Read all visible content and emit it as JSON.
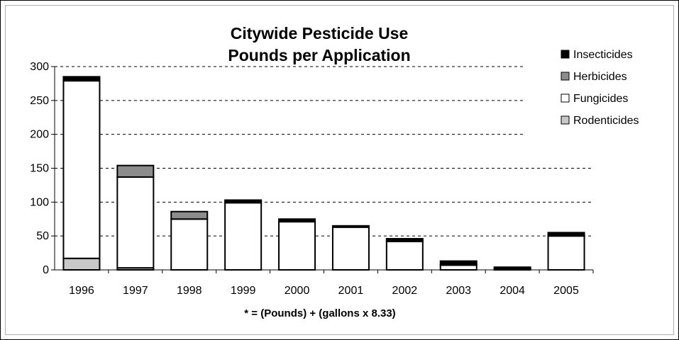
{
  "chart_data": {
    "type": "bar",
    "stacked": true,
    "title": [
      "Citywide Pesticide Use",
      "Pounds per Application"
    ],
    "xlabel": "* = (Pounds) + (gallons x 8.33)",
    "ylabel": "",
    "categories": [
      "1996",
      "1997",
      "1998",
      "1999",
      "2000",
      "2001",
      "2002",
      "2003",
      "2004",
      "2005"
    ],
    "yticks": [
      "0",
      "50",
      "100",
      "150",
      "200",
      "250",
      "300"
    ],
    "ylim": [
      0,
      300
    ],
    "grid": "dashed horizontal",
    "legend_position": "top-right",
    "legend": [
      "Insecticides",
      "Herbicides",
      "Fungicides",
      "Rodenticides"
    ],
    "series": [
      {
        "name": "Rodenticides",
        "color": "#c8c8c8",
        "values": [
          17,
          3,
          0,
          0,
          0,
          0,
          0,
          0,
          0,
          0
        ]
      },
      {
        "name": "Fungicides",
        "color": "#ffffff",
        "values": [
          262,
          134,
          75,
          99,
          71,
          63,
          42,
          7,
          2,
          50
        ]
      },
      {
        "name": "Herbicides",
        "color": "#8c8c8c",
        "values": [
          0,
          17,
          11,
          2,
          0,
          0,
          2,
          0,
          0,
          1
        ]
      },
      {
        "name": "Insecticides",
        "color": "#000000",
        "values": [
          6,
          0,
          0,
          2,
          4,
          2,
          2,
          6,
          2,
          4
        ]
      }
    ]
  }
}
